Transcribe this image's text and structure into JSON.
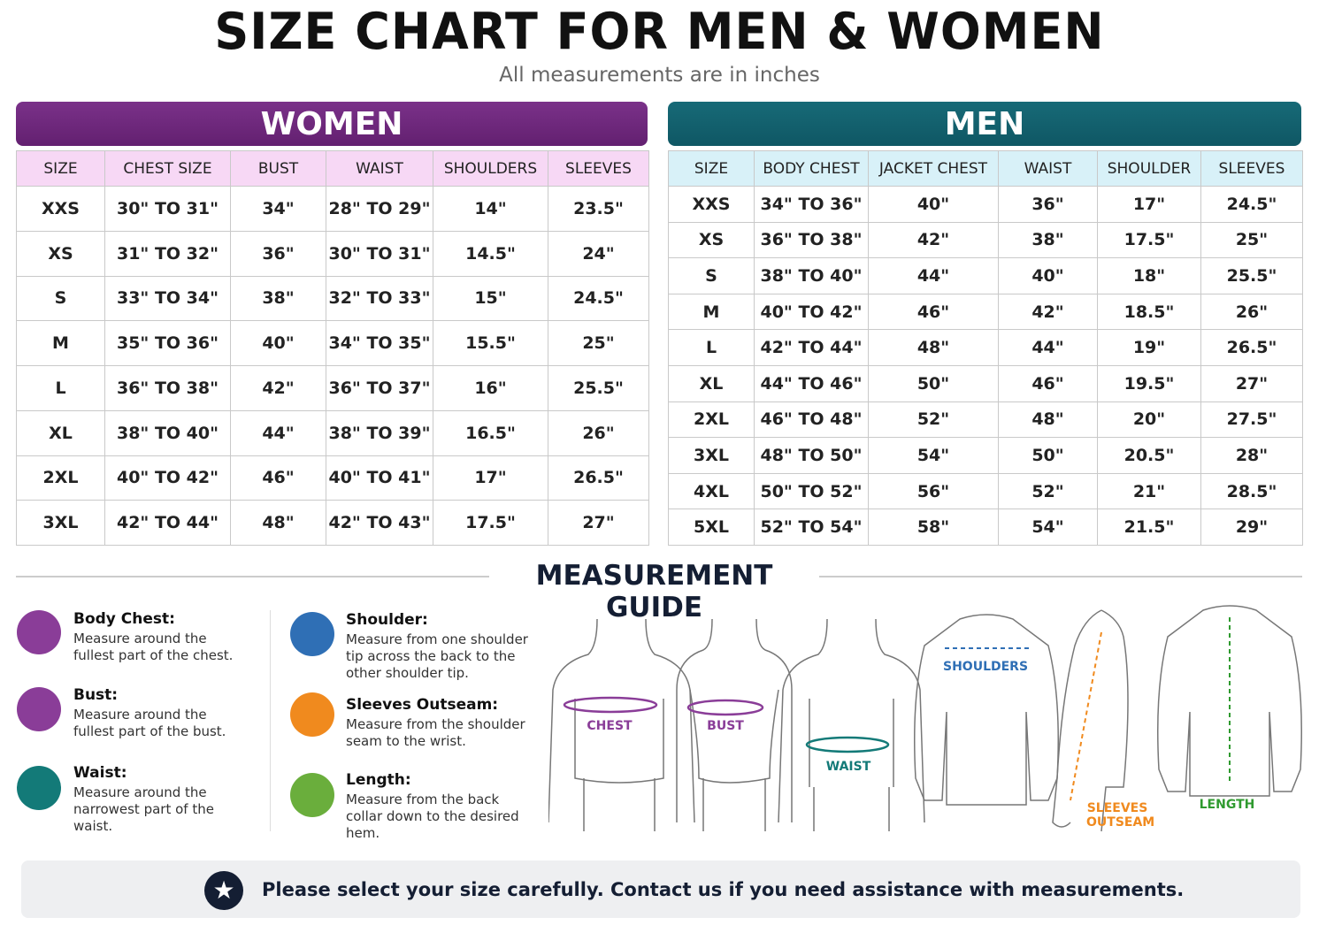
{
  "header": {
    "title": "SIZE CHART FOR MEN & WOMEN",
    "subtitle": "All measurements are in inches"
  },
  "women": {
    "title": "WOMEN",
    "columns": [
      "SIZE",
      "CHEST SIZE",
      "BUST",
      "WAIST",
      "SHOULDERS",
      "SLEEVES"
    ],
    "rows": [
      [
        "XXS",
        "30\" TO 31\"",
        "34\"",
        "28\" TO 29\"",
        "14\"",
        "23.5\""
      ],
      [
        "XS",
        "31\" TO 32\"",
        "36\"",
        "30\" TO 31\"",
        "14.5\"",
        "24\""
      ],
      [
        "S",
        "33\" TO 34\"",
        "38\"",
        "32\" TO 33\"",
        "15\"",
        "24.5\""
      ],
      [
        "M",
        "35\" TO 36\"",
        "40\"",
        "34\" TO 35\"",
        "15.5\"",
        "25\""
      ],
      [
        "L",
        "36\" TO 38\"",
        "42\"",
        "36\" TO 37\"",
        "16\"",
        "25.5\""
      ],
      [
        "XL",
        "38\" TO 40\"",
        "44\"",
        "38\" TO 39\"",
        "16.5\"",
        "26\""
      ],
      [
        "2XL",
        "40\" TO 42\"",
        "46\"",
        "40\" TO 41\"",
        "17\"",
        "26.5\""
      ],
      [
        "3XL",
        "42\" TO 44\"",
        "48\"",
        "42\" TO 43\"",
        "17.5\"",
        "27\""
      ]
    ]
  },
  "men": {
    "title": "MEN",
    "columns": [
      "SIZE",
      "BODY CHEST",
      "JACKET CHEST",
      "WAIST",
      "SHOULDER",
      "SLEEVES"
    ],
    "rows": [
      [
        "XXS",
        "34\" TO 36\"",
        "40\"",
        "36\"",
        "17\"",
        "24.5\""
      ],
      [
        "XS",
        "36\" TO 38\"",
        "42\"",
        "38\"",
        "17.5\"",
        "25\""
      ],
      [
        "S",
        "38\" TO 40\"",
        "44\"",
        "40\"",
        "18\"",
        "25.5\""
      ],
      [
        "M",
        "40\" TO 42\"",
        "46\"",
        "42\"",
        "18.5\"",
        "26\""
      ],
      [
        "L",
        "42\" TO 44\"",
        "48\"",
        "44\"",
        "19\"",
        "26.5\""
      ],
      [
        "XL",
        "44\" TO 46\"",
        "50\"",
        "46\"",
        "19.5\"",
        "27\""
      ],
      [
        "2XL",
        "46\" TO 48\"",
        "52\"",
        "48\"",
        "20\"",
        "27.5\""
      ],
      [
        "3XL",
        "48\" TO 50\"",
        "54\"",
        "50\"",
        "20.5\"",
        "28\""
      ],
      [
        "4XL",
        "50\" TO 52\"",
        "56\"",
        "52\"",
        "21\"",
        "28.5\""
      ],
      [
        "5XL",
        "52\" TO 54\"",
        "58\"",
        "54\"",
        "21.5\"",
        "29\""
      ]
    ]
  },
  "guide": {
    "title": "MEASUREMENT GUIDE",
    "items": [
      {
        "title": "Body Chest:",
        "text": "Measure around the fullest part of the chest."
      },
      {
        "title": "Bust:",
        "text": "Measure around the fullest part of the bust."
      },
      {
        "title": "Waist:",
        "text": "Measure around the narrowest part of the waist."
      },
      {
        "title": "Shoulder:",
        "text": "Measure from one shoulder tip across the back to the other shoulder tip."
      },
      {
        "title": "Sleeves Outseam:",
        "text": "Measure from the shoulder seam to the wrist."
      },
      {
        "title": "Length:",
        "text": "Measure from the back collar down to the desired hem."
      }
    ],
    "diagram_labels": [
      "CHEST",
      "BUST",
      "WAIST",
      "SHOULDERS",
      "SLEEVES OUTSEAM",
      "LENGTH"
    ]
  },
  "footer": {
    "note": "Please select your size carefully. Contact us if you need assistance with measurements."
  }
}
